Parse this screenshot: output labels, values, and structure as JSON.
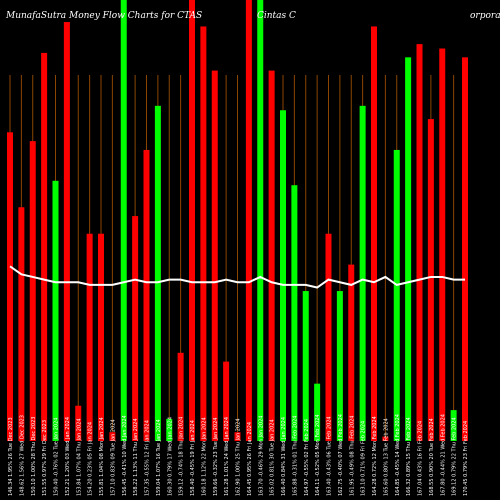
{
  "chart_data": {
    "type": "bar",
    "title": "MunafaSutra  Money Flow  Charts for CTAS",
    "title_company": "Cintas C",
    "title_suffix": "orporation",
    "ylim": [
      0,
      100
    ],
    "colors": {
      "background": "#000000",
      "up": "#ff0000",
      "down": "#00ff00",
      "grid_line": "#8b4500",
      "index_line": "#ffffff",
      "text": "#ffffff"
    },
    "categories": [
      "146.34 1.95% 26 Tue Dec 2023",
      "148.62 1.56% 27 Wed Dec 2023",
      "150.10 1.00% 28 Thu Dec 2023",
      "151.55 0.97% 29 Fri Dec 2023",
      "150.40 -0.76% 02 Tue Jan 2024",
      "152.21 1.20% 03 Wed Jan 2024",
      "153.84 1.07% 04 Thu Jan 2024",
      "154.20 0.23% 05 Fri Jan 2024",
      "155.81 1.04% 08 Mon Jan 2024",
      "157.10 0.83% 09 Tue Jan 2024",
      "156.45 -0.41% 10 Wed Jan 2024",
      "158.22 1.13% 11 Thu Jan 2024",
      "157.35 -0.55% 12 Fri Jan 2024",
      "159.04 1.07% 16 Tue Jan 2024",
      "160.30 0.79% 17 Wed Jan 2024",
      "159.12 -0.74% 18 Thu Jan 2024",
      "158.40 -0.45% 19 Fri Jan 2024",
      "160.18 1.12% 22 Mon Jan 2024",
      "159.66 -0.32% 23 Tue Jan 2024",
      "161.28 1.01% 24 Wed Jan 2024",
      "162.90 1.00% 25 Thu Jan 2024",
      "164.45 0.95% 26 Fri Jan 2024",
      "163.70 -0.46% 29 Mon Jan 2024",
      "165.02 0.81% 30 Tue Jan 2024",
      "166.40 0.84% 31 Wed Jan 2024",
      "165.88 -0.31% 01 Thu Feb 2024",
      "164.97 -0.55% 02 Fri Feb 2024",
      "164.11 -0.52% 05 Mon Feb 2024",
      "163.40 -0.43% 06 Tue Feb 2024",
      "162.75 -0.40% 07 Wed Feb 2024",
      "161.95 -0.49% 08 Thu Feb 2024",
      "163.10 0.71% 09 Fri Feb 2024",
      "164.28 0.72% 12 Mon Feb 2024",
      "165.60 0.80% 13 Tue Feb 2024",
      "164.85 -0.45% 14 Wed Feb 2024",
      "166.32 0.89% 15 Thu Feb 2024",
      "167.04 0.43% 16 Fri Feb 2024",
      "168.55 0.90% 20 Tue Feb 2024",
      "167.80 -0.44% 21 Wed Feb 2024",
      "169.12 0.79% 22 Thu Feb 2024",
      "170.45 0.79% 23 Fri Feb 2024"
    ],
    "values": [
      70,
      53,
      68,
      88,
      59,
      95,
      8,
      47,
      47,
      2,
      100,
      51,
      66,
      76,
      5,
      20,
      100,
      94,
      84,
      18,
      2,
      100,
      100,
      84,
      75,
      58,
      34,
      13,
      47,
      34,
      40,
      76,
      94,
      1,
      66,
      87,
      90,
      73,
      89,
      7,
      87
    ],
    "directions": [
      "up",
      "up",
      "up",
      "up",
      "down",
      "up",
      "up",
      "up",
      "up",
      "up",
      "down",
      "up",
      "up",
      "down",
      "down",
      "up",
      "up",
      "up",
      "up",
      "up",
      "up",
      "up",
      "down",
      "up",
      "down",
      "down",
      "down",
      "down",
      "up",
      "down",
      "up",
      "down",
      "up",
      "up",
      "down",
      "down",
      "up",
      "up",
      "up",
      "down",
      "up"
    ],
    "index_line": [
      66,
      63,
      62,
      61,
      60,
      60,
      60,
      59,
      59,
      59,
      60,
      61,
      60,
      60,
      61,
      61,
      60,
      60,
      60,
      61,
      60,
      60,
      62,
      60,
      59,
      59,
      59,
      58,
      61,
      60,
      59,
      61,
      60,
      62,
      59,
      60,
      61,
      62,
      62,
      61,
      61
    ]
  }
}
